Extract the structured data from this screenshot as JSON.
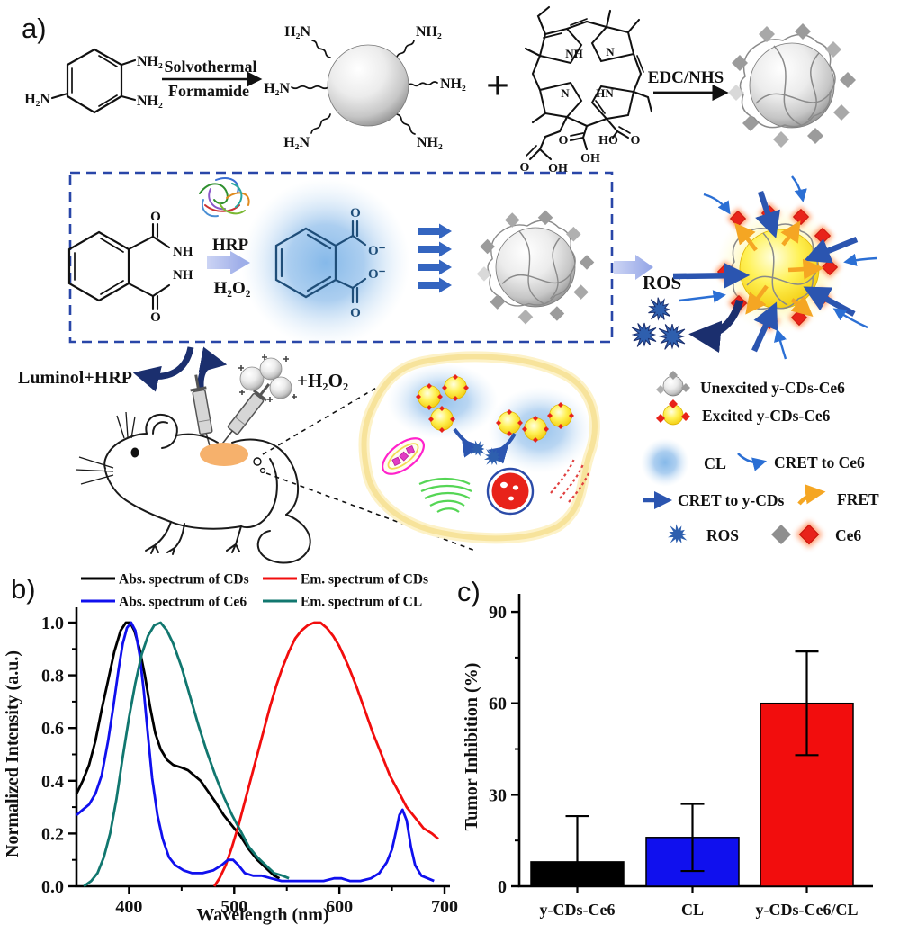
{
  "panels": {
    "a": "a)",
    "b": "b)",
    "c": "c)"
  },
  "panel_a": {
    "reaction1": {
      "top": "Solvothermal",
      "bottom": "Formamide"
    },
    "plus": "+",
    "edc_nhs": "EDC/NHS",
    "atoms": {
      "h2n": "H₂N",
      "nh2": "NH₂",
      "nh": "NH",
      "hn": "HN",
      "n": "N",
      "o": "O",
      "oh": "OH",
      "ho": "HO",
      "o_minus": "O⁻"
    },
    "hrp": "HRP",
    "h2o2": "H₂O₂",
    "luminol_hrp": "Luminol+HRP",
    "plus_h2o2": "+H₂O₂",
    "ros": "ROS",
    "legend": {
      "unexcited": "Unexcited y-CDs-Ce6",
      "excited": "Excited y-CDs-Ce6",
      "cl": "CL",
      "cret_to_ce6": "CRET to Ce6",
      "cret_to_ycds": "CRET to y-CDs",
      "fret": "FRET",
      "ros": "ROS",
      "ce6": "Ce6"
    }
  },
  "colors": {
    "box_dash": "#2946a8",
    "arrow_blue": "#3465c0",
    "arrow_navy": "#1b2f6e",
    "chevron": "#aab8ec",
    "fret_orange": "#f5a623",
    "ros_blue": "#2e5fae",
    "ce6_red": "#e8231a",
    "ce6_gray": "#9b9b9b",
    "tumor": "#f6b16c",
    "cell_membrane": "#f7e39b"
  },
  "chart_data": [
    {
      "type": "line",
      "title": "",
      "xlabel": "Wavelength (nm)",
      "ylabel": "Normalized Intensity (a.u.)",
      "xlim": [
        350,
        700
      ],
      "ylim": [
        0,
        1.08
      ],
      "xticks": [
        400,
        500,
        600,
        700
      ],
      "xticks_minor": [
        450,
        550,
        650
      ],
      "yticks": [
        0.0,
        0.2,
        0.4,
        0.6,
        0.8,
        1.0
      ],
      "yticks_minor": [
        0.1,
        0.3,
        0.5,
        0.7,
        0.9
      ],
      "grid": false,
      "legend_position": "top",
      "series": [
        {
          "name": "Abs. spectrum of CDs",
          "color": "#000000",
          "x": [
            350,
            356,
            362,
            368,
            374,
            380,
            386,
            392,
            397,
            401,
            405,
            410,
            415,
            420,
            425,
            430,
            436,
            442,
            450,
            456,
            462,
            468,
            475,
            482,
            490,
            498,
            506,
            514,
            522,
            530,
            538,
            543
          ],
          "y": [
            0.35,
            0.4,
            0.46,
            0.55,
            0.67,
            0.78,
            0.89,
            0.97,
            1.0,
            1.0,
            0.97,
            0.9,
            0.8,
            0.68,
            0.58,
            0.52,
            0.48,
            0.46,
            0.45,
            0.44,
            0.42,
            0.4,
            0.36,
            0.32,
            0.27,
            0.23,
            0.19,
            0.14,
            0.1,
            0.07,
            0.04,
            0.03
          ]
        },
        {
          "name": "Em. spectrum of CDs",
          "color": "#f20d0d",
          "x": [
            481,
            486,
            492,
            498,
            504,
            510,
            516,
            522,
            528,
            534,
            540,
            546,
            552,
            558,
            564,
            570,
            576,
            582,
            588,
            594,
            600,
            608,
            616,
            624,
            632,
            640,
            648,
            656,
            664,
            672,
            680,
            688,
            694
          ],
          "y": [
            0.0,
            0.03,
            0.08,
            0.15,
            0.23,
            0.32,
            0.41,
            0.5,
            0.59,
            0.68,
            0.76,
            0.83,
            0.89,
            0.94,
            0.97,
            0.99,
            1.0,
            1.0,
            0.98,
            0.95,
            0.91,
            0.84,
            0.76,
            0.67,
            0.58,
            0.5,
            0.42,
            0.36,
            0.3,
            0.26,
            0.22,
            0.2,
            0.18
          ]
        },
        {
          "name": "Abs. spectrum of Ce6",
          "color": "#1010ee",
          "x": [
            350,
            356,
            362,
            368,
            374,
            380,
            385,
            390,
            394,
            398,
            402,
            406,
            410,
            414,
            418,
            422,
            427,
            432,
            438,
            444,
            452,
            460,
            470,
            480,
            488,
            494,
            499,
            504,
            510,
            518,
            526,
            535,
            545,
            555,
            565,
            575,
            585,
            595,
            602,
            610,
            620,
            630,
            638,
            645,
            650,
            654,
            657,
            660,
            664,
            668,
            672,
            678,
            684,
            690
          ],
          "y": [
            0.27,
            0.29,
            0.31,
            0.35,
            0.42,
            0.55,
            0.68,
            0.82,
            0.92,
            0.98,
            1.0,
            0.97,
            0.88,
            0.74,
            0.57,
            0.41,
            0.27,
            0.18,
            0.11,
            0.08,
            0.06,
            0.05,
            0.05,
            0.06,
            0.08,
            0.1,
            0.1,
            0.08,
            0.05,
            0.04,
            0.04,
            0.03,
            0.02,
            0.02,
            0.02,
            0.02,
            0.02,
            0.03,
            0.03,
            0.02,
            0.02,
            0.03,
            0.05,
            0.09,
            0.14,
            0.21,
            0.27,
            0.29,
            0.25,
            0.15,
            0.08,
            0.04,
            0.03,
            0.02
          ]
        },
        {
          "name": "Em. spectrum of CL",
          "color": "#11776f",
          "x": [
            357,
            364,
            370,
            376,
            382,
            388,
            394,
            400,
            406,
            412,
            418,
            424,
            430,
            436,
            442,
            450,
            458,
            466,
            474,
            482,
            490,
            498,
            506,
            514,
            522,
            530,
            538,
            546,
            552
          ],
          "y": [
            0.0,
            0.02,
            0.05,
            0.11,
            0.2,
            0.33,
            0.49,
            0.64,
            0.77,
            0.88,
            0.95,
            0.99,
            1.0,
            0.97,
            0.92,
            0.83,
            0.72,
            0.61,
            0.51,
            0.42,
            0.34,
            0.27,
            0.21,
            0.15,
            0.11,
            0.08,
            0.05,
            0.04,
            0.03
          ]
        }
      ]
    },
    {
      "type": "bar",
      "title": "",
      "categories": [
        "y-CDs-Ce6",
        "CL",
        "y-CDs-Ce6/CL"
      ],
      "values": [
        8,
        16,
        60
      ],
      "errors": [
        15,
        11,
        17
      ],
      "bar_colors": [
        "#000000",
        "#1010ee",
        "#f20d0d"
      ],
      "xlabel": "",
      "ylabel": "Tumor Inhibition (%)",
      "ylim": [
        0,
        97
      ],
      "yticks": [
        0,
        30,
        60,
        90
      ],
      "yticks_minor": [
        15,
        45,
        75
      ],
      "grid": false
    }
  ]
}
